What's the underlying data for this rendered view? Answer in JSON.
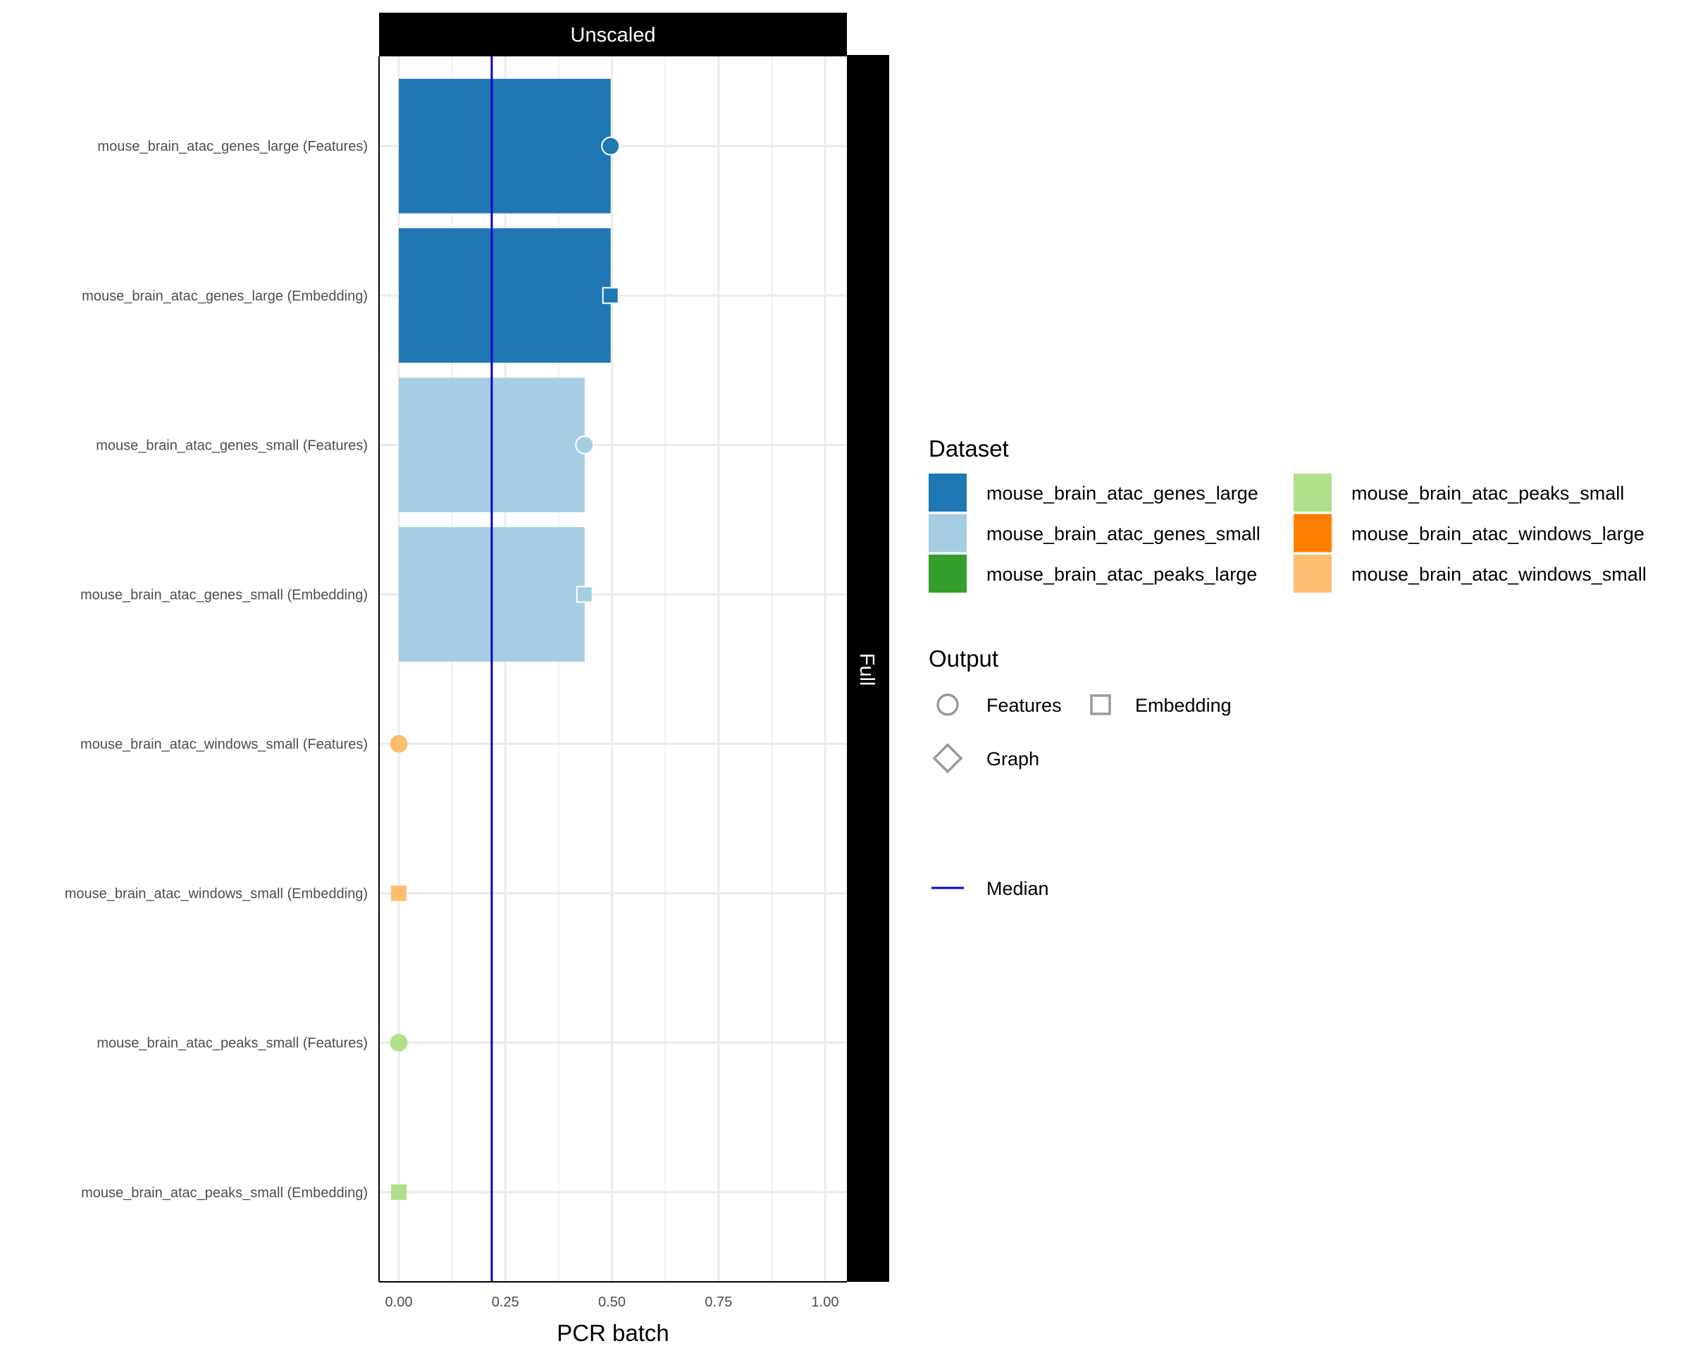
{
  "chart_data": {
    "type": "bar",
    "title": "",
    "facet_top": "Unscaled",
    "facet_right": "Full",
    "xlabel": "PCR batch",
    "ylabel": "",
    "xlim": [
      -0.05,
      1.05
    ],
    "x_ticks": [
      0,
      0.25,
      0.5,
      0.75,
      1.0
    ],
    "x_tick_labels": [
      "0.00",
      "0.25",
      "0.50",
      "0.75",
      "1.00"
    ],
    "grid": true,
    "median": 0.218,
    "categories": [
      "mouse_brain_atac_genes_large (Features)",
      "mouse_brain_atac_genes_large (Embedding)",
      "mouse_brain_atac_genes_small (Features)",
      "mouse_brain_atac_genes_small (Embedding)",
      "mouse_brain_atac_windows_small (Features)",
      "mouse_brain_atac_windows_small (Embedding)",
      "mouse_brain_atac_peaks_small (Features)",
      "mouse_brain_atac_peaks_small (Embedding)"
    ],
    "values": [
      0.497,
      0.497,
      0.436,
      0.436,
      0.0,
      0.0,
      0.0,
      0.0
    ],
    "datasets": [
      "mouse_brain_atac_genes_large",
      "mouse_brain_atac_genes_large",
      "mouse_brain_atac_genes_small",
      "mouse_brain_atac_genes_small",
      "mouse_brain_atac_windows_small",
      "mouse_brain_atac_windows_small",
      "mouse_brain_atac_peaks_small",
      "mouse_brain_atac_peaks_small"
    ],
    "outputs": [
      "Features",
      "Embedding",
      "Features",
      "Embedding",
      "Features",
      "Embedding",
      "Features",
      "Embedding"
    ],
    "legend_position": "right",
    "legend": {
      "dataset_title": "Dataset",
      "datasets": [
        {
          "name": "mouse_brain_atac_genes_large",
          "color": "#1f78b4"
        },
        {
          "name": "mouse_brain_atac_genes_small",
          "color": "#a6cee3"
        },
        {
          "name": "mouse_brain_atac_peaks_large",
          "color": "#33a02c"
        },
        {
          "name": "mouse_brain_atac_peaks_small",
          "color": "#b2df8a"
        },
        {
          "name": "mouse_brain_atac_windows_large",
          "color": "#ff7f00"
        },
        {
          "name": "mouse_brain_atac_windows_small",
          "color": "#fdbf6f"
        }
      ],
      "output_title": "Output",
      "outputs": [
        {
          "name": "Features",
          "shape": "circle"
        },
        {
          "name": "Embedding",
          "shape": "square"
        },
        {
          "name": "Graph",
          "shape": "diamond"
        }
      ],
      "median_label": "Median"
    },
    "colors": {
      "median": "#0000cc",
      "grid": "#ebebeb",
      "strip": "#000000",
      "legend_shape": "#999999"
    }
  }
}
